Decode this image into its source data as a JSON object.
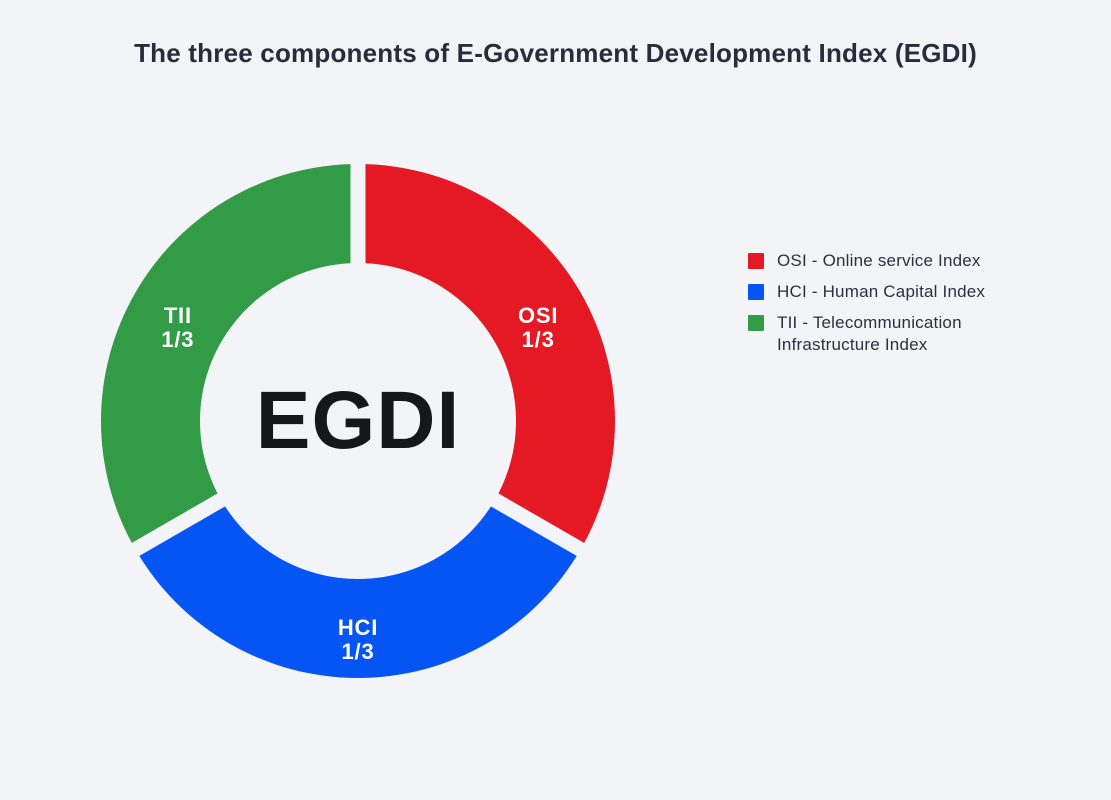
{
  "page": {
    "background_color": "#f3f4f8"
  },
  "title": "The three components of E-Government Development Index (EGDI)",
  "chart_data": {
    "type": "pie",
    "subtype": "donut",
    "title": "The three components of E-Government Development Index (EGDI)",
    "center_label": "EGDI",
    "direction": "clockwise",
    "start_angle_deg": 0,
    "legend_position": "right",
    "segments": [
      {
        "id": "osi",
        "label": "OSI",
        "value_label": "1/3",
        "value": 0.3333,
        "color": "#e41923",
        "legend": "OSI - Online service Index"
      },
      {
        "id": "hci",
        "label": "HCI",
        "value_label": "1/3",
        "value": 0.3333,
        "color": "#0555f5",
        "legend": "HCI - Human Capital Index"
      },
      {
        "id": "tii",
        "label": "TII",
        "value_label": "1/3",
        "value": 0.3333,
        "color": "#329b46",
        "legend": "TII - Telecommunication Infrastructure Index"
      }
    ],
    "colors": {
      "segment_label_text": "#ffffff",
      "center_label_text": "#16171b",
      "title_text": "#272d3a",
      "legend_text": "#2b3140"
    }
  }
}
